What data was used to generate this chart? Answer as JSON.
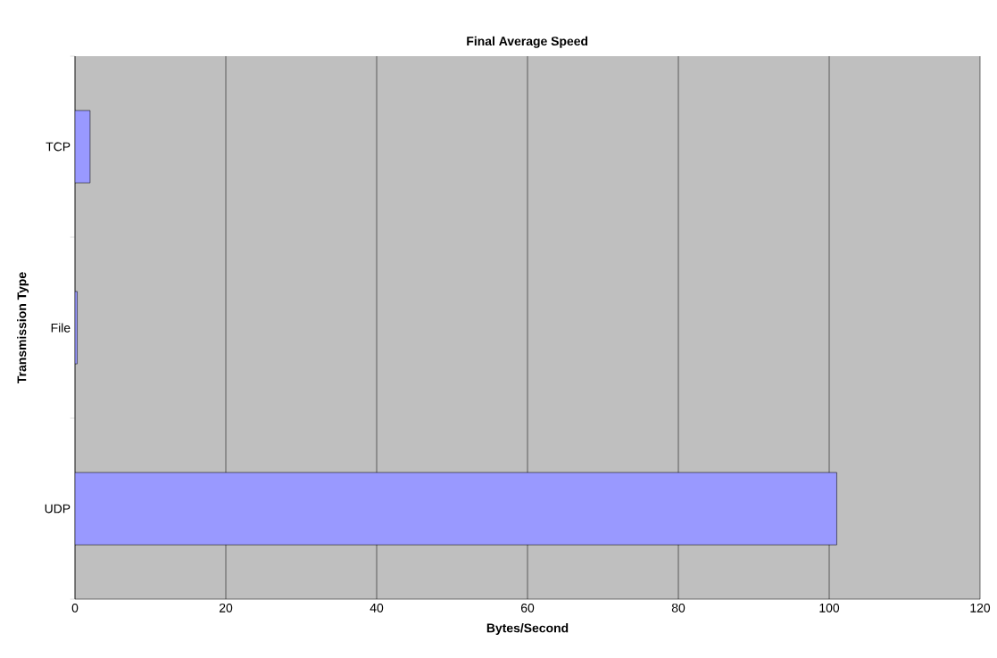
{
  "chart_data": {
    "type": "bar",
    "orientation": "horizontal",
    "title": "Final Average Speed",
    "xlabel": "Bytes/Second",
    "ylabel": "Transmission Type",
    "categories": [
      "TCP",
      "File",
      "UDP"
    ],
    "values": [
      2,
      0.3,
      101
    ],
    "color": "#9999ff",
    "xlim": [
      0,
      120
    ],
    "xticks": [
      0,
      20,
      40,
      60,
      80,
      100,
      120
    ],
    "grid": "x"
  }
}
